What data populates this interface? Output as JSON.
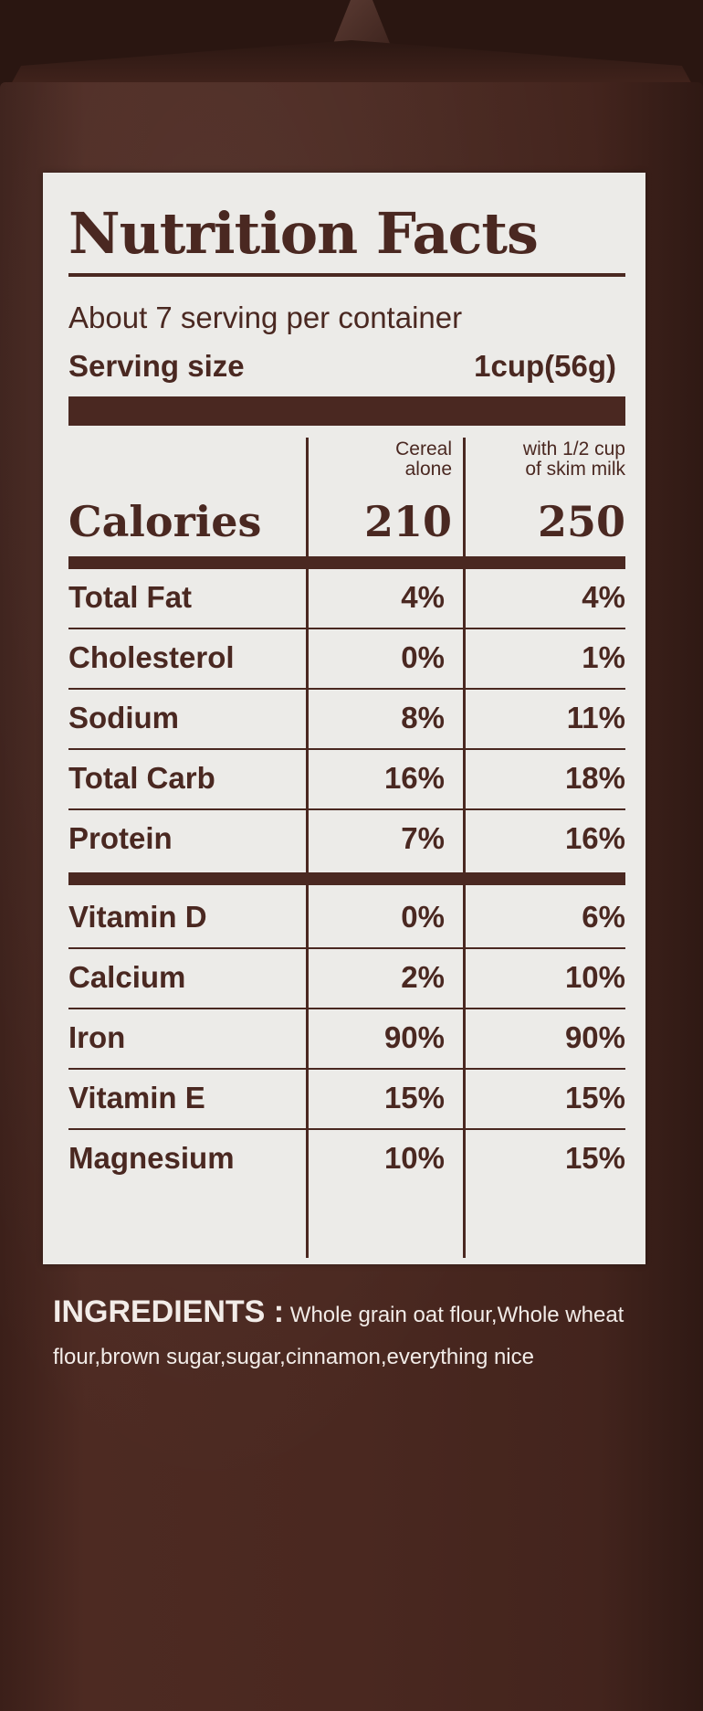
{
  "title": "Nutrition Facts",
  "servings_per_container": "About 7 serving per container",
  "serving_size_label": "Serving size",
  "serving_size_value": "1cup(56g)",
  "columns": {
    "col1_line1": "Cereal",
    "col1_line2": "alone",
    "col2_line1": "with 1/2 cup",
    "col2_line2": "of skim milk"
  },
  "calories": {
    "label": "Calories",
    "cereal_alone": "210",
    "with_milk": "250"
  },
  "rows": [
    {
      "name": "Total Fat",
      "cereal_alone": "4%",
      "with_milk": "4%"
    },
    {
      "name": "Cholesterol",
      "cereal_alone": "0%",
      "with_milk": "1%"
    },
    {
      "name": "Sodium",
      "cereal_alone": "8%",
      "with_milk": "11%"
    },
    {
      "name": "Total Carb",
      "cereal_alone": "16%",
      "with_milk": "18%"
    },
    {
      "name": "Protein",
      "cereal_alone": "7%",
      "with_milk": "16%"
    },
    {
      "name": "Vitamin D",
      "cereal_alone": "0%",
      "with_milk": "6%"
    },
    {
      "name": "Calcium",
      "cereal_alone": "2%",
      "with_milk": "10%"
    },
    {
      "name": "Iron",
      "cereal_alone": "90%",
      "with_milk": "90%"
    },
    {
      "name": "Vitamin E",
      "cereal_alone": "15%",
      "with_milk": "15%"
    },
    {
      "name": "Magnesium",
      "cereal_alone": "10%",
      "with_milk": "15%"
    }
  ],
  "ingredients": {
    "heading": "INGREDIENTS :",
    "text": "Whole grain oat flour,Whole wheat flour,brown sugar,sugar,cinnamon,everything nice"
  },
  "colors": {
    "box": "#4a2820",
    "label_bg": "#ecebe8",
    "ink": "#4a2821"
  }
}
